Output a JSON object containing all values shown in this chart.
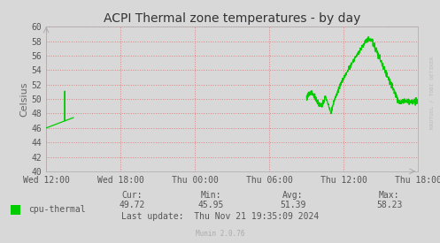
{
  "title": "ACPI Thermal zone temperatures - by day",
  "ylabel": "Celsius",
  "bg_color": "#d8d8d8",
  "plot_bg_color": "#d8d8d8",
  "grid_color": "#e08080",
  "line_color": "#00cc00",
  "ylim": [
    40,
    60
  ],
  "yticks": [
    40,
    42,
    44,
    46,
    48,
    50,
    52,
    54,
    56,
    58,
    60
  ],
  "xtick_labels": [
    "Wed 12:00",
    "Wed 18:00",
    "Thu 00:00",
    "Thu 06:00",
    "Thu 12:00",
    "Thu 18:00"
  ],
  "legend_label": "cpu-thermal",
  "legend_color": "#00cc00",
  "stats_cur": "49.72",
  "stats_min": "45.95",
  "stats_avg": "51.39",
  "stats_max": "58.23",
  "last_update": "Last update:  Thu Nov 21 19:35:09 2024",
  "munin_version": "Munin 2.0.76",
  "watermark": "RRDTOOL / TOBI OETIKER",
  "title_fontsize": 10,
  "axis_fontsize": 7,
  "stats_fontsize": 7,
  "ylabel_fontsize": 8
}
